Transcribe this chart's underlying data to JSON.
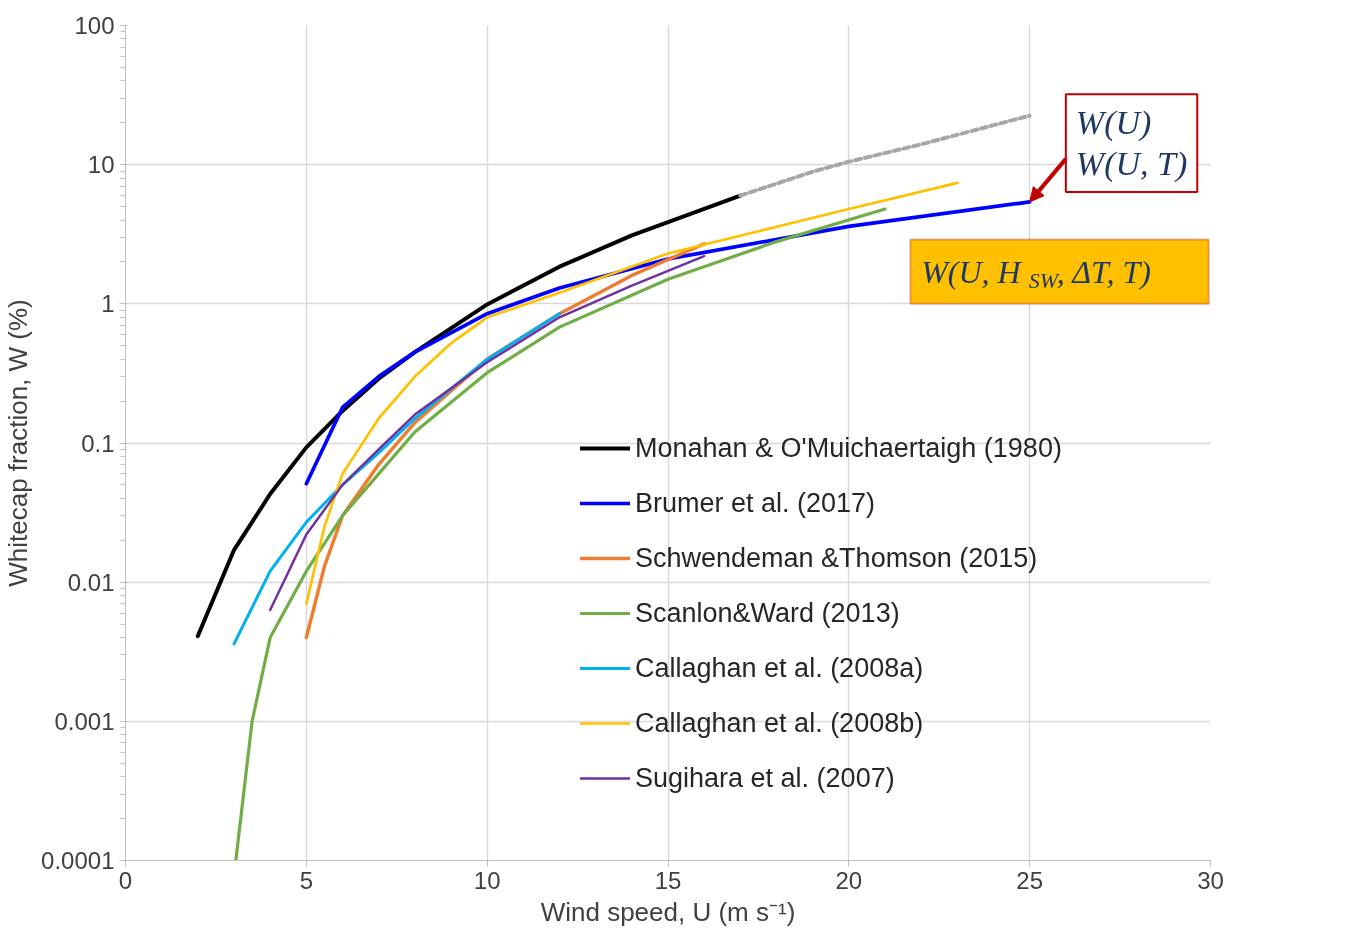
{
  "chart_data": {
    "type": "line",
    "xlabel": "Wind speed, U (m s⁻¹)",
    "ylabel": "Whitecap fraction, W (%)",
    "log": "y",
    "grid": true,
    "legend": "right",
    "line_style": "solid",
    "xlim": [
      0,
      30
    ],
    "xticks": [
      0,
      5,
      10,
      15,
      20,
      25,
      30
    ],
    "ylim": [
      0.0001,
      100
    ],
    "yticks": [
      {
        "value": 0.0001,
        "label": "0.0001"
      },
      {
        "value": 0.001,
        "label": "0.001"
      },
      {
        "value": 0.01,
        "label": "0.01"
      },
      {
        "value": 0.1,
        "label": "0.1"
      },
      {
        "value": 1,
        "label": "1"
      },
      {
        "value": 10,
        "label": "10"
      },
      {
        "value": 100,
        "label": "100"
      }
    ],
    "series": [
      {
        "name": "Monahan & O'Muichaertaigh (1980)",
        "color": "#000000",
        "x": [
          2,
          3,
          4,
          5,
          6,
          7,
          8,
          10,
          12,
          14,
          17
        ],
        "values": [
          0.0041,
          0.017,
          0.043,
          0.093,
          0.17,
          0.29,
          0.45,
          0.99,
          1.85,
          3.1,
          6.0
        ]
      },
      {
        "color": "#a6a6a6",
        "line_style": "dashed",
        "x": [
          17,
          19,
          20,
          22,
          25
        ],
        "values": [
          6.0,
          8.9,
          10.5,
          14,
          22.5
        ]
      },
      {
        "name": "Brumer et al. (2017)",
        "color": "#0000ff",
        "x": [
          5,
          6,
          7,
          8,
          10,
          12,
          15,
          20,
          25
        ],
        "values": [
          0.051,
          0.18,
          0.3,
          0.45,
          0.85,
          1.3,
          2.1,
          3.6,
          5.4
        ]
      },
      {
        "name": "Schwendeman &Thomson (2015)",
        "color": "#ed7d31",
        "x": [
          5,
          5.5,
          6,
          7,
          8,
          10,
          12,
          14,
          16
        ],
        "values": [
          0.004,
          0.013,
          0.03,
          0.07,
          0.14,
          0.4,
          0.85,
          1.6,
          2.7
        ]
      },
      {
        "name": "Scanlon&Ward (2013)",
        "color": "#70ad47",
        "x": [
          3.05,
          3.5,
          4,
          5,
          6,
          7,
          8,
          10,
          12,
          15,
          18,
          21
        ],
        "values": [
          0.0001,
          0.001,
          0.004,
          0.012,
          0.03,
          0.06,
          0.12,
          0.32,
          0.68,
          1.5,
          2.8,
          4.8
        ]
      },
      {
        "name": "Callaghan et al. (2008a)",
        "color": "#00b0f0",
        "x": [
          3,
          4,
          5,
          6,
          7,
          8,
          10,
          12
        ],
        "values": [
          0.0036,
          0.012,
          0.027,
          0.05,
          0.085,
          0.15,
          0.4,
          0.85
        ]
      },
      {
        "name": "Callaghan et al. (2008b)",
        "color": "#ffc000",
        "x": [
          5,
          5.5,
          6,
          7,
          8,
          9,
          10,
          12,
          15,
          20,
          23
        ],
        "values": [
          0.007,
          0.025,
          0.06,
          0.15,
          0.3,
          0.52,
          0.8,
          1.2,
          2.3,
          4.8,
          7.4
        ]
      },
      {
        "name": "Sugihara et al. (2007)",
        "color": "#7030a0",
        "x": [
          4,
          5,
          6,
          7,
          8,
          10,
          12,
          14,
          16
        ],
        "values": [
          0.0063,
          0.022,
          0.05,
          0.09,
          0.16,
          0.38,
          0.8,
          1.35,
          2.2
        ]
      }
    ],
    "annotations": [
      {
        "text": "W(U)",
        "x": 25,
        "y": 5.4
      },
      "W(U, T)",
      "W(U, H$_{SW}$, ΔT, T)"
    ]
  }
}
